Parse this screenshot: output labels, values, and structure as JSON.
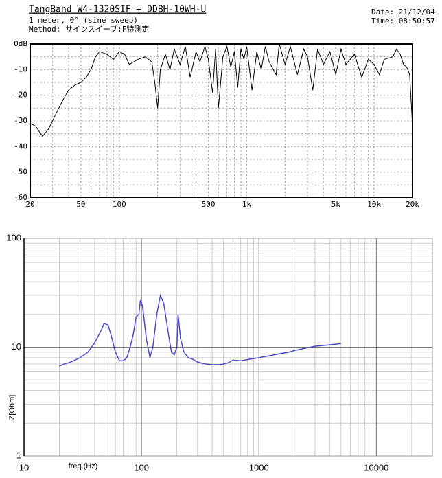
{
  "chart_data": [
    {
      "type": "line",
      "title": "TangBand W4-1320SIF + DDBH-10WH-U",
      "subtitle": [
        "1 meter, 0°  (sine sweep)",
        "Method: サインスイープ:F特測定"
      ],
      "date": "Date: 21/12/04",
      "time": "Time: 08:50:57",
      "x_log": true,
      "y_log": false,
      "grid": true,
      "xlim": [
        20,
        20000
      ],
      "ylim": [
        -60,
        0
      ],
      "xticks": [
        20,
        50,
        100,
        500,
        {
          "value": 1000,
          "label": "1k"
        },
        {
          "value": 5000,
          "label": "5k"
        },
        {
          "value": 10000,
          "label": "10k"
        },
        {
          "value": 20000,
          "label": "20k"
        }
      ],
      "yticks": [
        {
          "value": 0,
          "label": "0dB"
        },
        -10,
        -20,
        -30,
        -40,
        -50,
        -60
      ],
      "x": [
        20,
        22,
        25,
        28,
        32,
        36,
        40,
        45,
        50,
        55,
        60,
        65,
        70,
        80,
        90,
        100,
        110,
        120,
        140,
        160,
        180,
        190,
        200,
        210,
        230,
        250,
        270,
        300,
        330,
        360,
        400,
        430,
        470,
        500,
        540,
        570,
        600,
        650,
        700,
        750,
        800,
        850,
        900,
        950,
        1000,
        1100,
        1200,
        1300,
        1400,
        1500,
        1700,
        1800,
        2000,
        2200,
        2500,
        2800,
        3000,
        3300,
        3600,
        4000,
        4500,
        5000,
        5500,
        6000,
        7000,
        8000,
        9000,
        10000,
        11000,
        12000,
        14000,
        15000,
        16000,
        17000,
        18000,
        19000,
        20000
      ],
      "series": [
        {
          "color": "#000000",
          "values": [
            -31,
            -32,
            -36,
            -33,
            -27,
            -22,
            -18,
            -16,
            -15,
            -13,
            -10,
            -5,
            -3,
            -4,
            -6,
            -3,
            -4,
            -8,
            -6,
            -5,
            -7,
            -15,
            -25,
            -10,
            -4,
            -10,
            -2,
            -8,
            -1,
            -13,
            -3,
            -7,
            -1,
            -6,
            -19,
            -2,
            -25,
            -5,
            -1,
            -9,
            -3,
            -17,
            -2,
            -6,
            -1,
            -18,
            -3,
            -10,
            -1,
            -7,
            -12,
            0,
            -8,
            -1,
            -12,
            -2,
            -5,
            -18,
            -2,
            -8,
            -3,
            -12,
            -2,
            -8,
            -4,
            -13,
            -6,
            -8,
            -12,
            -6,
            -5,
            -2,
            -4,
            -8,
            -9,
            -12,
            -32
          ]
        }
      ]
    },
    {
      "type": "line",
      "xlabel": "freq.(Hz)",
      "ylabel": "Z[Ohm]",
      "x_log": true,
      "y_log": true,
      "grid": true,
      "xlim": [
        10,
        30000
      ],
      "ylim": [
        1,
        100
      ],
      "xticks": [
        10,
        100,
        1000,
        10000
      ],
      "yticks": [
        1,
        10,
        100
      ],
      "x": [
        20,
        22,
        25,
        30,
        35,
        40,
        45,
        48,
        52,
        55,
        60,
        65,
        70,
        75,
        80,
        85,
        90,
        95,
        98,
        102,
        110,
        118,
        125,
        135,
        145,
        155,
        170,
        180,
        190,
        200,
        205,
        215,
        230,
        250,
        270,
        300,
        350,
        400,
        450,
        500,
        550,
        600,
        700,
        800,
        1000,
        1200,
        1500,
        1800,
        2000,
        2500,
        3000,
        4000,
        5000
      ],
      "series": [
        {
          "color": "#4a4acc",
          "values": [
            6.7,
            7.0,
            7.3,
            8,
            9,
            11,
            14,
            16.5,
            16,
            13,
            9,
            7.5,
            7.5,
            8,
            10,
            13,
            19,
            20,
            27,
            24,
            12,
            8,
            10,
            20,
            30,
            25,
            13,
            9,
            8.5,
            10,
            20,
            12,
            9,
            8,
            7.8,
            7.3,
            7.0,
            6.9,
            6.9,
            7.0,
            7.2,
            7.6,
            7.5,
            7.7,
            8.0,
            8.3,
            8.7,
            9.0,
            9.3,
            9.8,
            10.2,
            10.5,
            10.8
          ]
        }
      ]
    }
  ]
}
